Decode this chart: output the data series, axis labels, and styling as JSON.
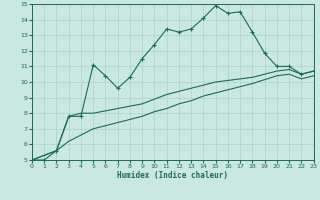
{
  "xlabel": "Humidex (Indice chaleur)",
  "xlim": [
    0,
    23
  ],
  "ylim": [
    5,
    15
  ],
  "xticks": [
    0,
    1,
    2,
    3,
    4,
    5,
    6,
    7,
    8,
    9,
    10,
    11,
    12,
    13,
    14,
    15,
    16,
    17,
    18,
    19,
    20,
    21,
    22,
    23
  ],
  "yticks": [
    5,
    6,
    7,
    8,
    9,
    10,
    11,
    12,
    13,
    14,
    15
  ],
  "bg_color": "#c8e8e0",
  "grid_color": "#aad4cc",
  "line_color": "#1a6b5a",
  "line1_x": [
    0,
    1,
    2,
    3,
    4,
    5,
    6,
    7,
    8,
    9,
    10,
    11,
    12,
    13,
    14,
    15,
    16,
    17,
    18,
    19,
    20,
    21,
    22,
    23
  ],
  "line1_y": [
    5.0,
    5.0,
    5.6,
    7.8,
    7.8,
    11.1,
    10.4,
    9.6,
    10.3,
    11.5,
    12.4,
    13.4,
    13.2,
    13.4,
    14.1,
    14.9,
    14.4,
    14.5,
    13.2,
    11.85,
    11.0,
    11.0,
    10.5,
    10.7
  ],
  "line2_x": [
    0,
    2,
    3,
    4,
    5,
    9,
    10,
    11,
    12,
    13,
    14,
    15,
    16,
    17,
    18,
    20,
    21,
    22,
    23
  ],
  "line2_y": [
    5.0,
    5.6,
    7.8,
    8.0,
    8.0,
    8.6,
    8.9,
    9.2,
    9.4,
    9.6,
    9.8,
    10.0,
    10.1,
    10.2,
    10.3,
    10.7,
    10.8,
    10.5,
    10.7
  ],
  "line3_x": [
    0,
    2,
    3,
    4,
    5,
    9,
    10,
    11,
    12,
    13,
    14,
    15,
    16,
    17,
    18,
    20,
    21,
    22,
    23
  ],
  "line3_y": [
    5.0,
    5.6,
    6.2,
    6.6,
    7.0,
    7.8,
    8.1,
    8.3,
    8.6,
    8.8,
    9.1,
    9.3,
    9.5,
    9.7,
    9.9,
    10.4,
    10.5,
    10.2,
    10.4
  ]
}
